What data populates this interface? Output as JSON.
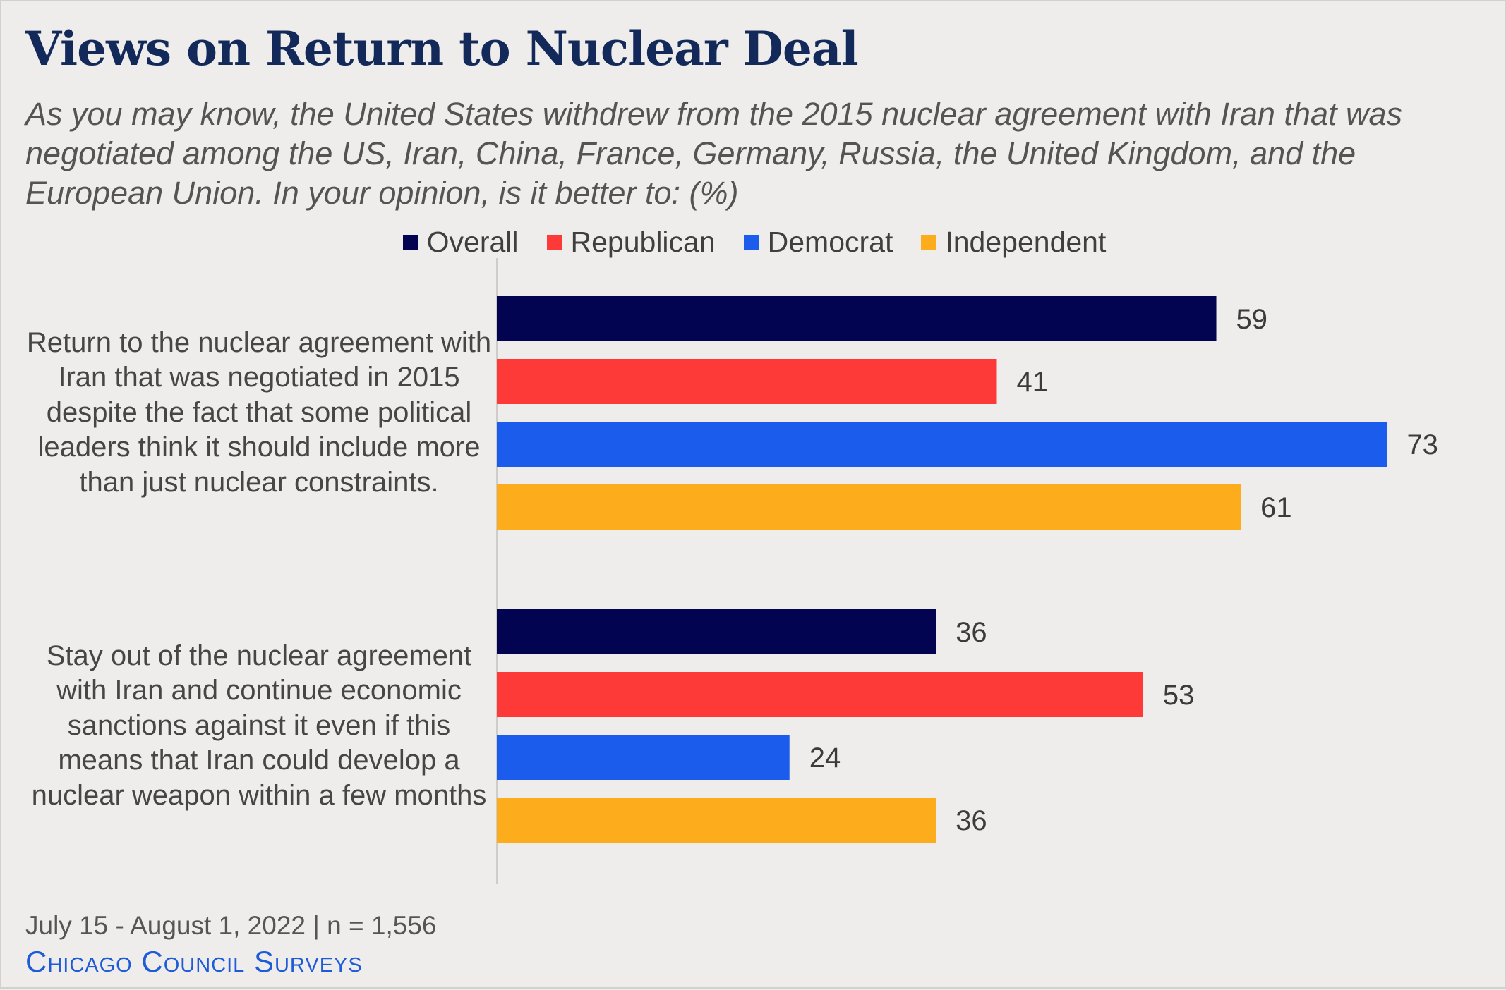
{
  "title": "Views on Return to Nuclear Deal",
  "subtitle": "As you may know, the United States withdrew from the 2015 nuclear agreement with Iran that was negotiated among the US, Iran, China, France, Germany, Russia, the United Kingdom, and the European Union. In your opinion, is it better to: (%)",
  "footer": {
    "date_sample": "July 15 - August 1, 2022 | n = 1,556",
    "brand": "Chicago Council Surveys"
  },
  "chart_data": {
    "type": "bar",
    "orientation": "horizontal",
    "categories": [
      "Return to the nuclear agreement with Iran that was negotiated in 2015 despite the fact that some political leaders think it should include more than just nuclear constraints.",
      "Stay out of the nuclear agreement with Iran and continue economic sanctions against it even if this means that Iran could develop a nuclear weapon within a few months"
    ],
    "series": [
      {
        "name": "Overall",
        "color": "#020452",
        "values": [
          59,
          36
        ]
      },
      {
        "name": "Republican",
        "color": "#fd3a37",
        "values": [
          41,
          53
        ]
      },
      {
        "name": "Democrat",
        "color": "#1b5ced",
        "values": [
          73,
          24
        ]
      },
      {
        "name": "Independent",
        "color": "#fdac1c",
        "values": [
          61,
          36
        ]
      }
    ],
    "xlim": [
      0,
      100
    ],
    "grid": false,
    "legend_position": "top",
    "data_labels": true
  }
}
